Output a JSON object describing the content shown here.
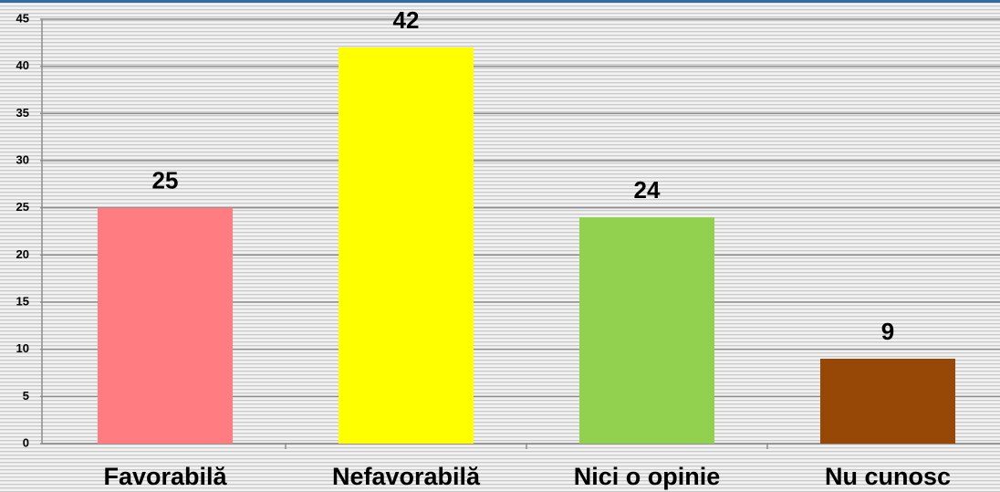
{
  "chart_data": {
    "type": "bar",
    "categories": [
      "Favorabilă",
      "Nefavorabilă",
      "Nici o opinie",
      "Nu cunosc"
    ],
    "values": [
      25,
      42,
      24,
      9
    ],
    "colors": [
      "#ff7c80",
      "#ffff00",
      "#92d050",
      "#974806"
    ],
    "ylim": [
      0,
      45
    ],
    "yticks": [
      0,
      5,
      10,
      15,
      20,
      25,
      30,
      35,
      40,
      45
    ],
    "grid": true
  }
}
